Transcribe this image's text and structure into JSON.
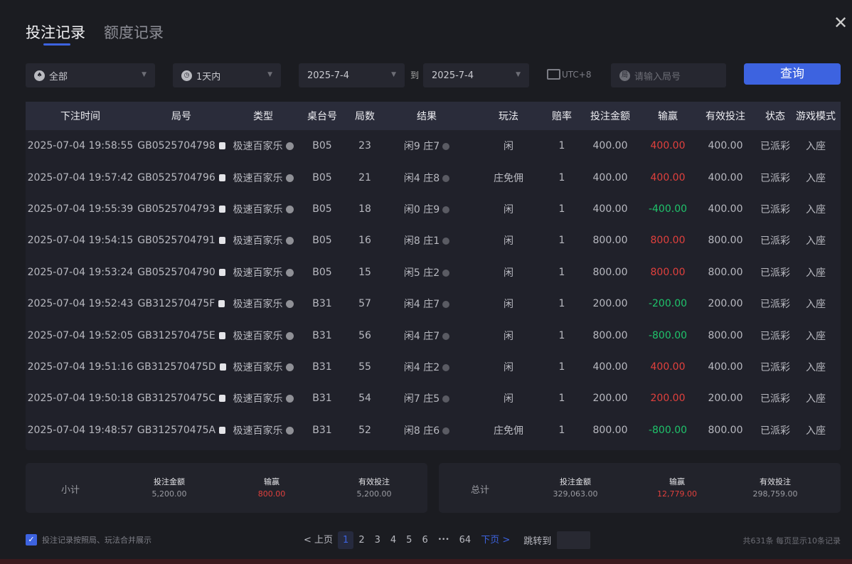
{
  "tabs": [
    "投注记录",
    "额度记录"
  ],
  "filters": {
    "game": "全部",
    "range": "1天内",
    "date_from": "2025-7-4",
    "to": "到",
    "date_to": "2025-7-4",
    "timezone": "UTC+8",
    "round_placeholder": "请输入局号",
    "query": "查询"
  },
  "columns": [
    "下注时间",
    "局号",
    "类型",
    "桌台号",
    "局数",
    "结果",
    "玩法",
    "赔率",
    "投注金额",
    "输赢",
    "有效投注",
    "状态",
    "游戏模式"
  ],
  "rows": [
    [
      "2025-07-04 19:58:55",
      "GB0525704798",
      "极速百家乐",
      "B05",
      "23",
      "闲9 庄7",
      "闲",
      "1",
      "400.00",
      "400.00",
      "400.00",
      "已派彩",
      "入座"
    ],
    [
      "2025-07-04 19:57:42",
      "GB0525704796",
      "极速百家乐",
      "B05",
      "21",
      "闲4 庄8",
      "庄免佣",
      "1",
      "400.00",
      "400.00",
      "400.00",
      "已派彩",
      "入座"
    ],
    [
      "2025-07-04 19:55:39",
      "GB0525704793",
      "极速百家乐",
      "B05",
      "18",
      "闲0 庄9",
      "闲",
      "1",
      "400.00",
      "-400.00",
      "400.00",
      "已派彩",
      "入座"
    ],
    [
      "2025-07-04 19:54:15",
      "GB0525704791",
      "极速百家乐",
      "B05",
      "16",
      "闲8 庄1",
      "闲",
      "1",
      "800.00",
      "800.00",
      "800.00",
      "已派彩",
      "入座"
    ],
    [
      "2025-07-04 19:53:24",
      "GB0525704790",
      "极速百家乐",
      "B05",
      "15",
      "闲5 庄2",
      "闲",
      "1",
      "800.00",
      "800.00",
      "800.00",
      "已派彩",
      "入座"
    ],
    [
      "2025-07-04 19:52:43",
      "GB312570475F",
      "极速百家乐",
      "B31",
      "57",
      "闲4 庄7",
      "闲",
      "1",
      "200.00",
      "-200.00",
      "200.00",
      "已派彩",
      "入座"
    ],
    [
      "2025-07-04 19:52:05",
      "GB312570475E",
      "极速百家乐",
      "B31",
      "56",
      "闲4 庄7",
      "闲",
      "1",
      "800.00",
      "-800.00",
      "800.00",
      "已派彩",
      "入座"
    ],
    [
      "2025-07-04 19:51:16",
      "GB312570475D",
      "极速百家乐",
      "B31",
      "55",
      "闲4 庄2",
      "闲",
      "1",
      "400.00",
      "400.00",
      "400.00",
      "已派彩",
      "入座"
    ],
    [
      "2025-07-04 19:50:18",
      "GB312570475C",
      "极速百家乐",
      "B31",
      "54",
      "闲7 庄5",
      "闲",
      "1",
      "200.00",
      "200.00",
      "200.00",
      "已派彩",
      "入座"
    ],
    [
      "2025-07-04 19:48:57",
      "GB312570475A",
      "极速百家乐",
      "B31",
      "52",
      "闲8 庄6",
      "庄免佣",
      "1",
      "800.00",
      "-800.00",
      "800.00",
      "已派彩",
      "入座"
    ]
  ],
  "subtotal": {
    "label": "小计",
    "bet_label": "投注金额",
    "bet": "5,200.00",
    "win_label": "输赢",
    "win": "800.00",
    "valid_label": "有效投注",
    "valid": "5,200.00"
  },
  "total": {
    "label": "总计",
    "bet_label": "投注金额",
    "bet": "329,063.00",
    "win_label": "输赢",
    "win": "12,779.00",
    "valid_label": "有效投注",
    "valid": "298,759.00"
  },
  "merge_checkbox": {
    "label": "投注记录按照局、玩法合并展示",
    "checked": true
  },
  "pager": {
    "prev": "< 上页",
    "pages": [
      "1",
      "2",
      "3",
      "4",
      "5",
      "6",
      "•••",
      "64"
    ],
    "current": "1",
    "next": "下页 >",
    "jump": "跳转到"
  },
  "summary": "共631条  每页显示10条记录",
  "colors": {
    "accent": "#3d63e0",
    "win": "#e0403d",
    "loss": "#1fc36b"
  }
}
